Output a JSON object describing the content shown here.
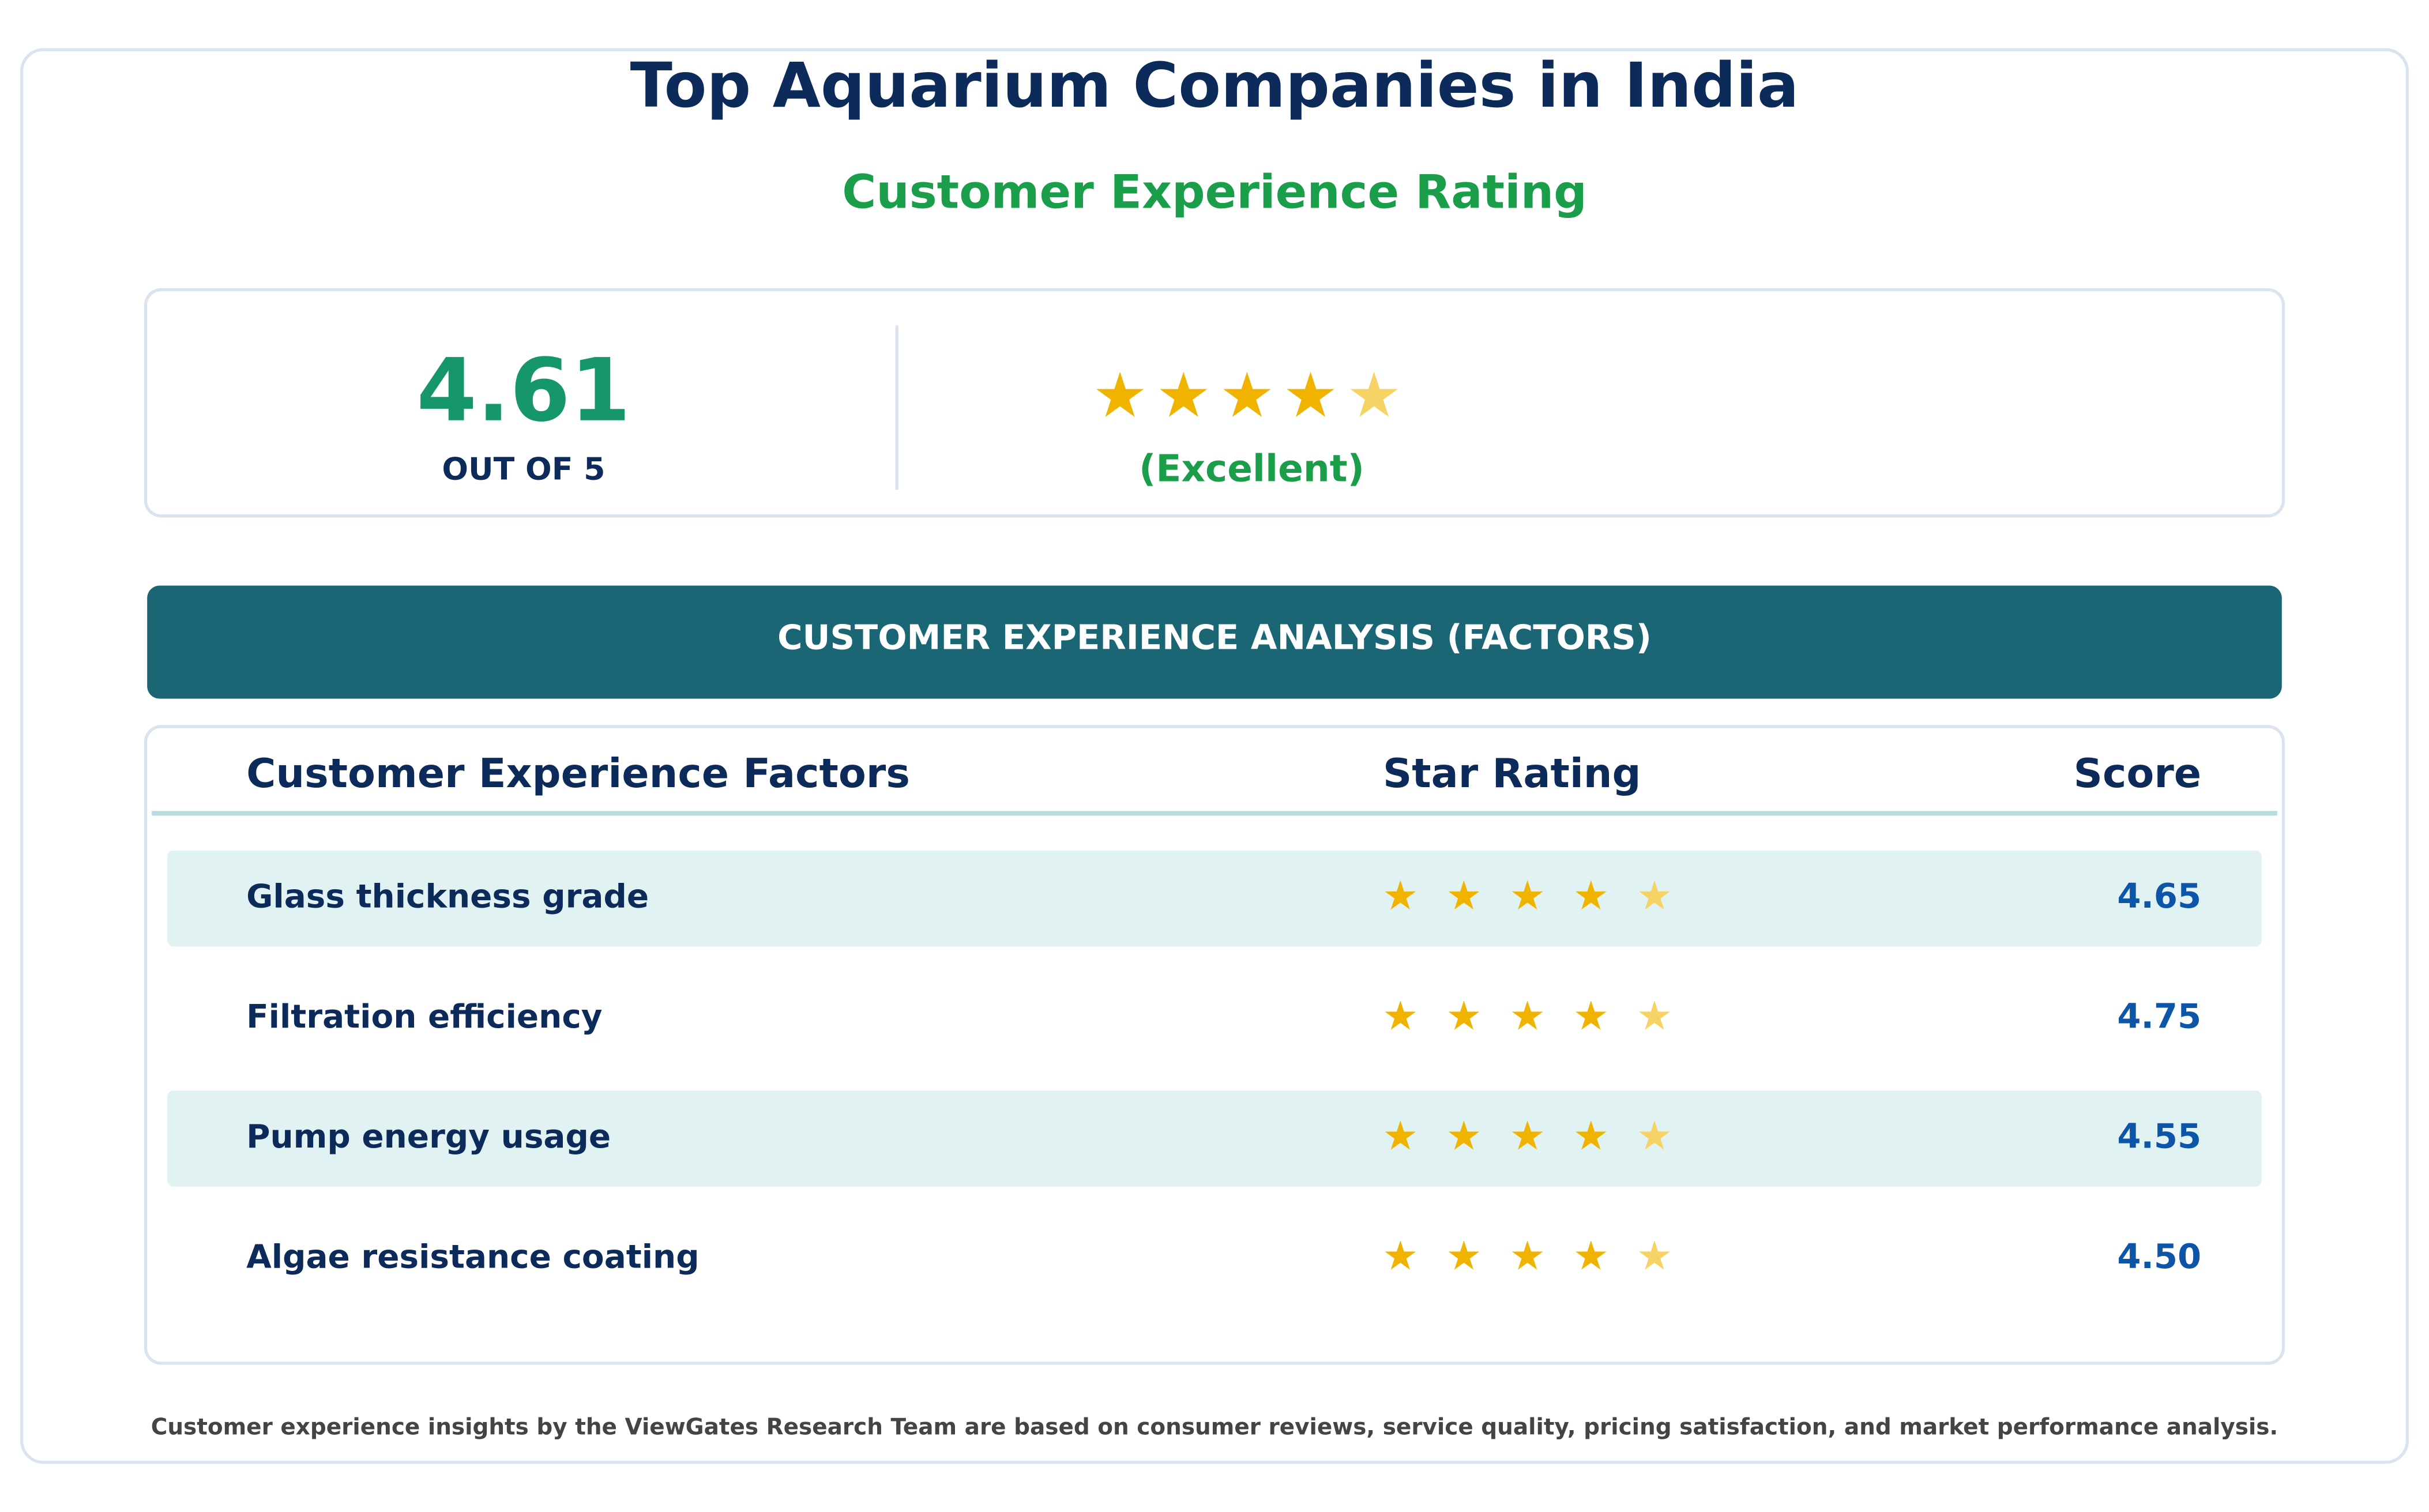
{
  "header": {
    "title": "Top Aquarium Companies in India",
    "subtitle": "Customer Experience Rating"
  },
  "summary": {
    "score": "4.61",
    "scale_label": "OUT OF 5",
    "verdict": "(Excellent)"
  },
  "analysis": {
    "banner": "CUSTOMER EXPERIENCE ANALYSIS (FACTORS)",
    "columns": [
      "Customer Experience Factors",
      "Star Rating",
      "Score"
    ],
    "rows": [
      [
        "Glass thickness grade",
        "4.65"
      ],
      [
        "Filtration efficiency",
        "4.75"
      ],
      [
        "Pump energy usage",
        "4.55"
      ],
      [
        "Algae resistance coating",
        "4.50"
      ]
    ]
  },
  "footer": "Customer experience insights by the ViewGates Research Team are based on consumer reviews, service quality, pricing satisfaction, and market performance analysis."
}
